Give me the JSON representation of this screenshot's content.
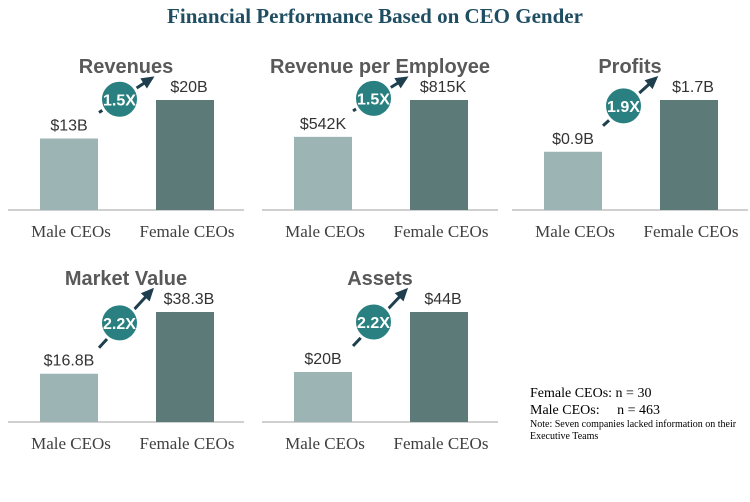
{
  "title": "Financial Performance Based on CEO Gender",
  "colors": {
    "title": "#1f4e63",
    "male_bar": "#9cb4b4",
    "female_bar": "#5c7b78",
    "badge": "#2a8080",
    "axis": "#d0d0d0"
  },
  "chart_data": [
    {
      "type": "bar",
      "title": "Revenues",
      "categories": [
        "Male CEOs",
        "Female CEOs"
      ],
      "values": [
        13,
        20
      ],
      "value_labels": [
        "$13B",
        "$20B"
      ],
      "unit": "$B",
      "multiplier": "1.5X"
    },
    {
      "type": "bar",
      "title": "Revenue per Employee",
      "categories": [
        "Male CEOs",
        "Female CEOs"
      ],
      "values": [
        542,
        815
      ],
      "value_labels": [
        "$542K",
        "$815K"
      ],
      "unit": "$K",
      "multiplier": "1.5X"
    },
    {
      "type": "bar",
      "title": "Profits",
      "categories": [
        "Male CEOs",
        "Female CEOs"
      ],
      "values": [
        0.9,
        1.7
      ],
      "value_labels": [
        "$0.9B",
        "$1.7B"
      ],
      "unit": "$B",
      "multiplier": "1.9X"
    },
    {
      "type": "bar",
      "title": "Market Value",
      "categories": [
        "Male CEOs",
        "Female CEOs"
      ],
      "values": [
        16.8,
        38.3
      ],
      "value_labels": [
        "$16.8B",
        "$38.3B"
      ],
      "unit": "$B",
      "multiplier": "2.2X"
    },
    {
      "type": "bar",
      "title": "Assets",
      "categories": [
        "Male CEOs",
        "Female CEOs"
      ],
      "values": [
        20,
        44
      ],
      "value_labels": [
        "$20B",
        "$44B"
      ],
      "unit": "$B",
      "multiplier": "2.2X"
    }
  ],
  "notes": {
    "female": "Female CEOs: n = 30",
    "male": "Male CEOs:     n = 463",
    "footnote": "Note:  Seven companies lacked information on their Executive Teams"
  }
}
